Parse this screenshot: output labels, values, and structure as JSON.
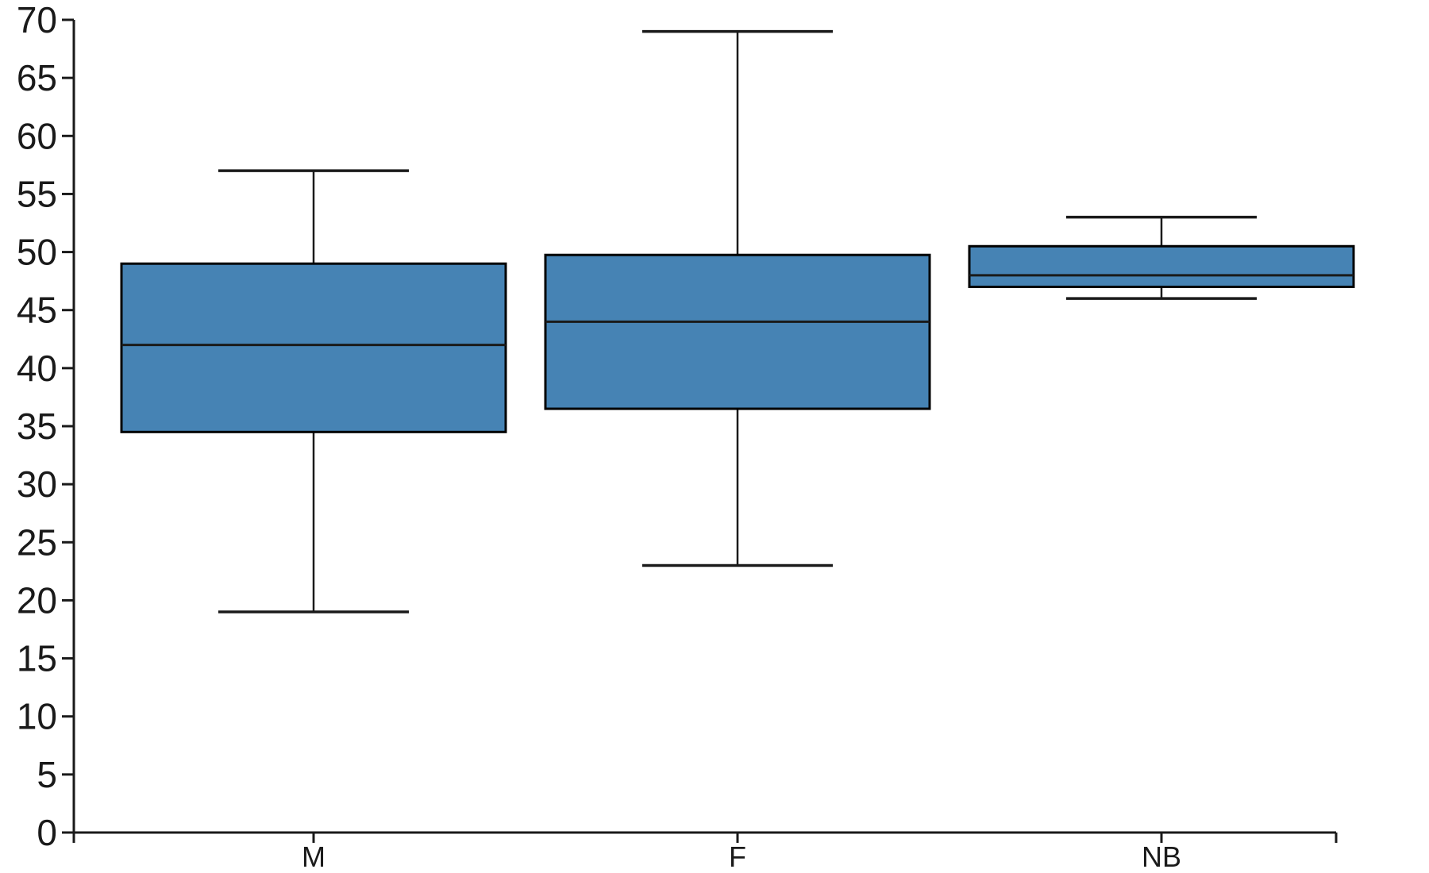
{
  "chart_data": {
    "type": "box",
    "title": "",
    "xlabel": "",
    "ylabel": "",
    "categories": [
      "M",
      "F",
      "NB"
    ],
    "series": [
      {
        "category": "M",
        "whisker_low": 19,
        "q1": 34.5,
        "median": 42,
        "q3": 49,
        "whisker_high": 57
      },
      {
        "category": "F",
        "whisker_low": 23,
        "q1": 36.5,
        "median": 44,
        "q3": 49.75,
        "whisker_high": 69
      },
      {
        "category": "NB",
        "whisker_low": 46,
        "q1": 47,
        "median": 48,
        "q3": 50.5,
        "whisker_high": 53
      }
    ],
    "ylim": [
      0,
      70
    ],
    "ytick_interval": 5,
    "ytick_labels": [
      "0",
      "5",
      "10",
      "15",
      "20",
      "25",
      "30",
      "35",
      "40",
      "45",
      "50",
      "55",
      "60",
      "65",
      "70"
    ],
    "grid": false,
    "legend": null,
    "outliers": [],
    "box_fill_color": "#4683b4",
    "box_edge_color": "#000000",
    "median_color": "#000000",
    "whisker_color": "#000000",
    "axis_color": "#1a1a1a",
    "background_color": "#ffffff"
  }
}
